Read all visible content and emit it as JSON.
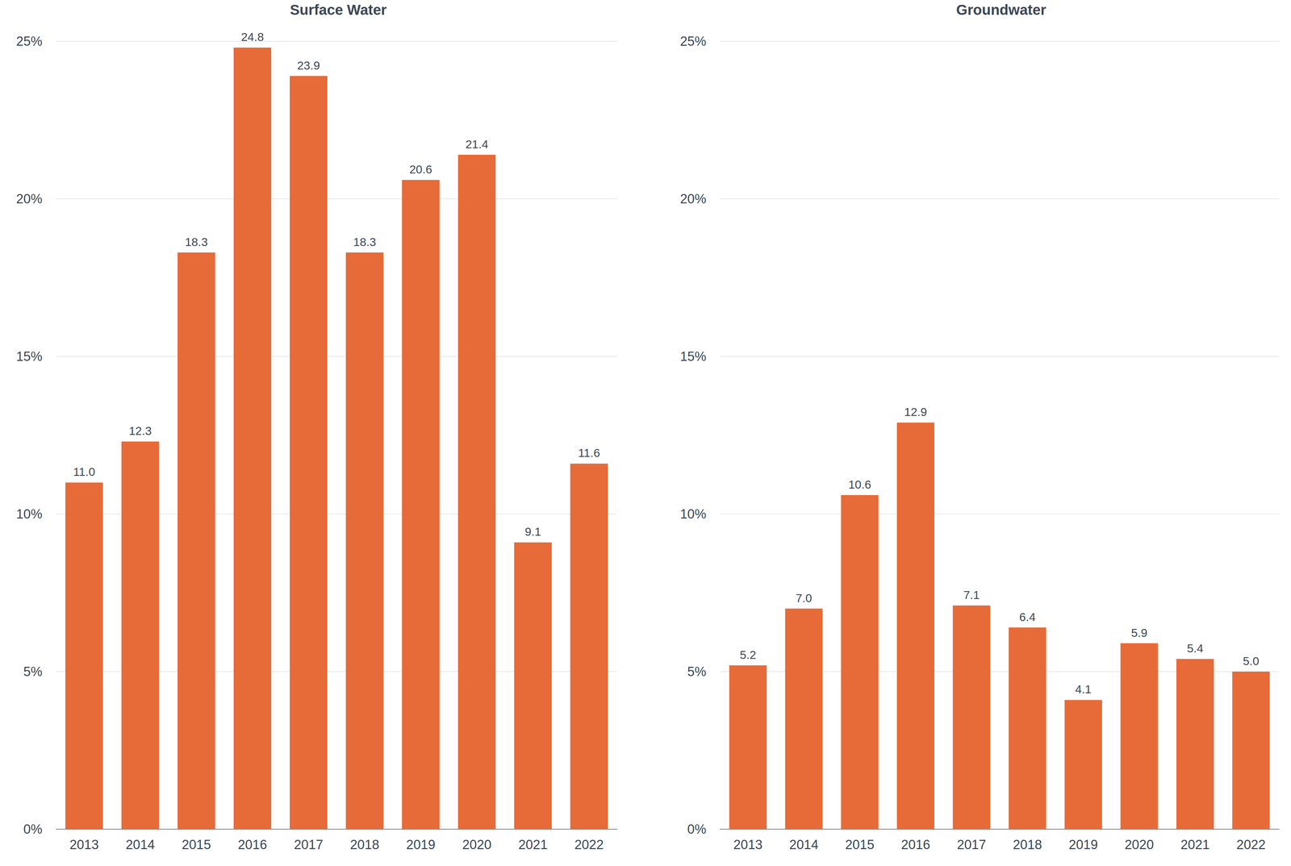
{
  "chart_data": [
    {
      "type": "bar",
      "title": "Surface Water",
      "categories": [
        "2013",
        "2014",
        "2015",
        "2016",
        "2017",
        "2018",
        "2019",
        "2020",
        "2021",
        "2022"
      ],
      "values": [
        11,
        12.3,
        18.3,
        24.8,
        23.9,
        18.3,
        20.6,
        21.4,
        9.1,
        11.6
      ],
      "value_labels": [
        "11.0",
        "12.3",
        "18.3",
        "24.8",
        "23.9",
        "18.3",
        "20.6",
        "21.4",
        "9.1",
        "11.6"
      ],
      "color": "#e66b38",
      "ylim": [
        0,
        25
      ],
      "yticks": [
        {
          "value": 0,
          "label": "0%"
        },
        {
          "value": 5,
          "label": "5%"
        },
        {
          "value": 10,
          "label": "10%"
        },
        {
          "value": 15,
          "label": "15%"
        },
        {
          "value": 20,
          "label": "20%"
        },
        {
          "value": 25,
          "label": "25%"
        }
      ],
      "grid": true,
      "data_labels": true
    },
    {
      "type": "bar",
      "title": "Groundwater",
      "categories": [
        "2013",
        "2014",
        "2015",
        "2016",
        "2017",
        "2018",
        "2019",
        "2020",
        "2021",
        "2022"
      ],
      "values": [
        5.2,
        7,
        10.6,
        12.9,
        7.1,
        6.4,
        4.1,
        5.9,
        5.4,
        5
      ],
      "value_labels": [
        "5.2",
        "7.0",
        "10.6",
        "12.9",
        "7.1",
        "6.4",
        "4.1",
        "5.9",
        "5.4",
        "5.0"
      ],
      "color": "#e66b38",
      "ylim": [
        0,
        25
      ],
      "yticks": [
        {
          "value": 0,
          "label": "0%"
        },
        {
          "value": 5,
          "label": "5%"
        },
        {
          "value": 10,
          "label": "10%"
        },
        {
          "value": 15,
          "label": "15%"
        },
        {
          "value": 20,
          "label": "20%"
        },
        {
          "value": 25,
          "label": "25%"
        }
      ],
      "grid": true,
      "data_labels": true
    }
  ]
}
